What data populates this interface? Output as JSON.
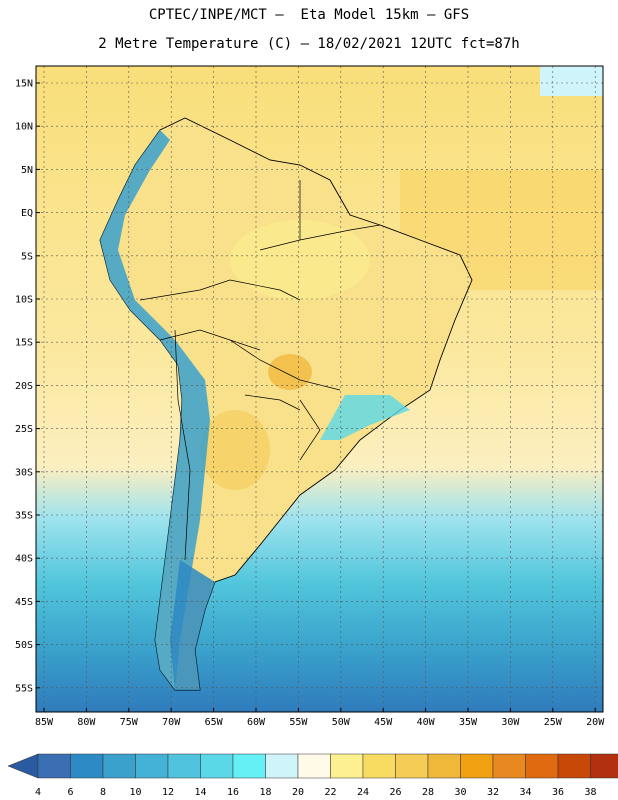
{
  "header": {
    "line1": "CPTEC/INPE/MCT –  Eta Model 15km – GFS",
    "line2": "2 Metre Temperature (C) – 18/02/2021 12UTC fct=87h"
  },
  "map": {
    "lat_labels": [
      "15N",
      "10N",
      "5N",
      "EQ",
      "5S",
      "10S",
      "15S",
      "20S",
      "25S",
      "30S",
      "35S",
      "40S",
      "45S",
      "50S",
      "55S"
    ],
    "lon_labels": [
      "85W",
      "80W",
      "75W",
      "70W",
      "65W",
      "60W",
      "55W",
      "50W",
      "45W",
      "40W",
      "35W",
      "30W",
      "25W",
      "20W"
    ]
  },
  "legend": {
    "labels": [
      "4",
      "6",
      "8",
      "10",
      "12",
      "14",
      "16",
      "18",
      "20",
      "22",
      "24",
      "26",
      "28",
      "30",
      "32",
      "34",
      "36",
      "38"
    ],
    "colors": [
      "#3a6fb3",
      "#2d8ac4",
      "#3aa0cc",
      "#44b2d6",
      "#50c4de",
      "#5ad8e8",
      "#64f0f4",
      "#cff4fa",
      "#fffbe8",
      "#fdf090",
      "#f8dc62",
      "#f4cc56",
      "#f0b83a",
      "#f0a010",
      "#e88820",
      "#e06a10",
      "#c84808",
      "#b03010"
    ],
    "low_color": "#2a5aa0",
    "high_color": "#a82c08"
  }
}
